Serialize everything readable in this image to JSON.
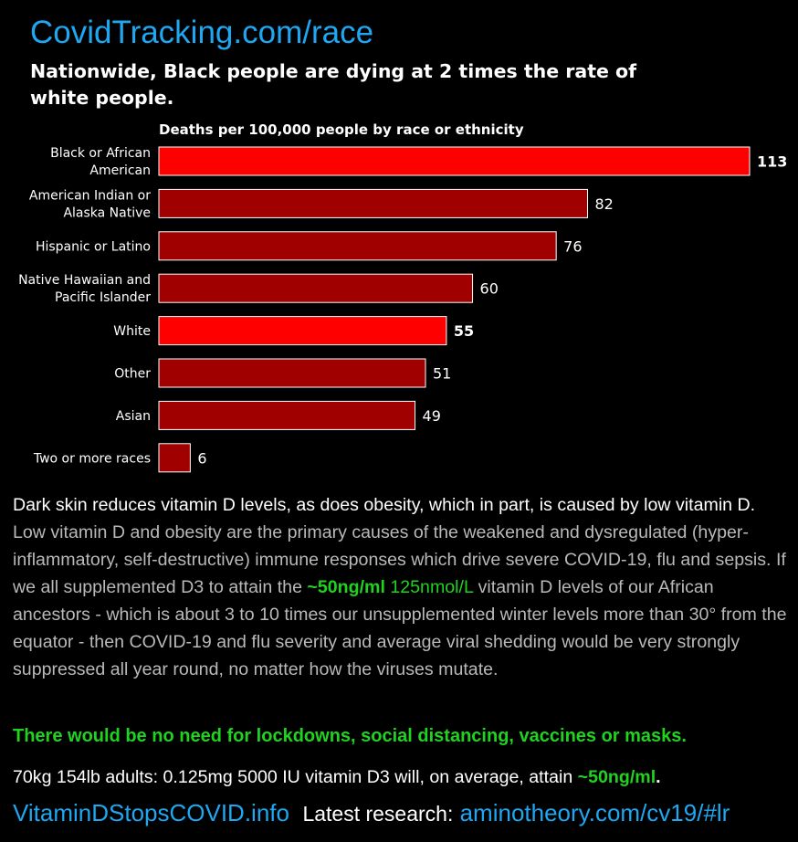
{
  "header": {
    "site": "CovidTracking.com/race",
    "headline": "Nationwide, Black people are dying at 2 times the rate of white people."
  },
  "chart_data": {
    "type": "bar",
    "orientation": "horizontal",
    "title": "Deaths per 100,000 people by race or ethnicity",
    "categories": [
      [
        "Black or African",
        "American"
      ],
      [
        "American Indian or",
        "Alaska Native"
      ],
      [
        "Hispanic or Latino"
      ],
      [
        "Native Hawaiian and",
        "Pacific Islander"
      ],
      [
        "White"
      ],
      [
        "Other"
      ],
      [
        "Asian"
      ],
      [
        "Two or more races"
      ]
    ],
    "values": [
      113,
      82,
      76,
      60,
      55,
      51,
      49,
      6
    ],
    "highlighted": [
      true,
      false,
      false,
      false,
      true,
      false,
      false,
      false
    ],
    "colors": {
      "highlight": "#ff0000",
      "normal": "#a00000",
      "border": "#ffffff"
    },
    "xlim": [
      0,
      113
    ]
  },
  "body": {
    "p1_white": "Dark skin reduces vitamin D levels, as does obesity, which in part, is caused by low vitamin D.",
    "p1_grey": "Low vitamin D and obesity are the primary causes of the weakened and dysregulated (hyper-inflammatory, self-destructive) immune responses which drive severe COVID-19, flu and sepsis.  If we all supplemented D3 to attain the",
    "ng": "~50ng/ml",
    "nmol": "125nmol/L",
    "p1_rest": "vitamin D levels of our African ancestors - which is about 3 to 10 times our unsupplemented winter levels more than 30° from the equator - then COVID-19 and flu severity and average viral shedding would be very strongly suppressed all year round, no matter how the viruses mutate.",
    "no_need": "There would be no need for lockdowns, social distancing, vaccines or masks.",
    "dose_text": "70kg 154lb adults: 0.125mg 5000 IU vitamin D3 will, on average, attain",
    "dose_ng": "~50ng/ml",
    "dose_end": "."
  },
  "footer": {
    "site_link": "VitaminDStopsCOVID.info",
    "research_label": "Latest research:",
    "research_link": "aminotheory.com/cv19/#lr"
  },
  "colors": {
    "link": "#1ea7f2",
    "green": "#1fd31f",
    "grey_text": "#b9b9b9"
  }
}
